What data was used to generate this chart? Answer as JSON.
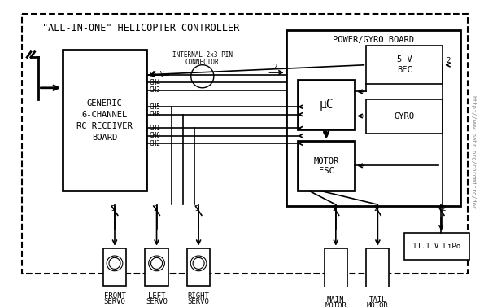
{
  "title": "\"ALL-IN-ONE\" HELICOPTER CONTROLLER",
  "bg_color": "#ffffff",
  "border_color": "#000000",
  "text_color": "#000000",
  "fig_width": 6.11,
  "fig_height": 3.77,
  "url_text": "http://www.pabr.org/chromicro/doc",
  "inner_title": "POWER/GYRO BOARD",
  "receiver_label": [
    "GENERIC",
    "6-CHANNEL",
    "RC RECEIVER",
    "BOARD"
  ],
  "bec_label": [
    "5 V",
    "BEC"
  ],
  "gyro_label": "GYRO",
  "uc_label": "μC",
  "motor_esc_label": [
    "MOTOR",
    "ESC"
  ],
  "lipo_label": "11.1 V LiPo",
  "connector_label": [
    "INTERNAL 2x3 PIN",
    "CONNECTOR"
  ],
  "channels": [
    "+5 V",
    "CH4",
    "CH3",
    "CH5",
    "CHB",
    "CH1",
    "CH6",
    "CH2"
  ],
  "bottom_labels": [
    [
      "FRONT",
      "SERVO"
    ],
    [
      "LEFT",
      "SERVO"
    ],
    [
      "RIGHT",
      "SERVO"
    ],
    [
      "MAIN",
      "MOTOR"
    ],
    [
      "TAIL",
      "MOTOR"
    ]
  ],
  "bus_numbers": [
    "3",
    "3",
    "3",
    "3",
    "3",
    "2",
    "2",
    "2"
  ]
}
